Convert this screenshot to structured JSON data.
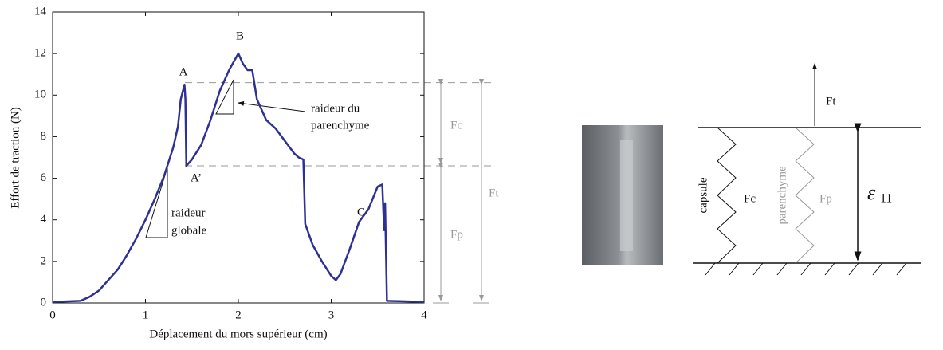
{
  "chart_data": {
    "type": "line",
    "xlabel": "Déplacement du mors supérieur (cm)",
    "ylabel": "Effort de traction (N)",
    "xlim": [
      0,
      4
    ],
    "xticks": [
      0,
      1,
      2,
      3,
      4
    ],
    "ylim": [
      0,
      14
    ],
    "yticks": [
      0,
      2,
      4,
      6,
      8,
      10,
      12,
      14
    ],
    "series": [
      {
        "color": "#2e3192",
        "x": [
          0,
          0.3,
          0.4,
          0.5,
          0.6,
          0.7,
          0.8,
          0.9,
          1.0,
          1.1,
          1.2,
          1.3,
          1.35,
          1.38,
          1.42,
          1.43,
          1.44,
          1.5,
          1.6,
          1.7,
          1.8,
          1.9,
          2.0,
          2.05,
          2.1,
          2.15,
          2.2,
          2.3,
          2.4,
          2.5,
          2.6,
          2.65,
          2.7,
          2.72,
          2.8,
          2.9,
          3.0,
          3.05,
          3.1,
          3.2,
          3.3,
          3.4,
          3.5,
          3.55,
          3.57,
          3.58,
          3.6,
          4.0
        ],
        "values": [
          0.05,
          0.1,
          0.3,
          0.6,
          1.1,
          1.6,
          2.3,
          3.1,
          4.0,
          5.0,
          6.1,
          7.5,
          8.5,
          9.8,
          10.5,
          9.8,
          6.6,
          6.9,
          7.6,
          8.8,
          10.2,
          11.2,
          12.0,
          11.5,
          11.2,
          11.2,
          9.8,
          8.8,
          8.4,
          7.8,
          7.2,
          7.0,
          6.9,
          3.8,
          2.8,
          2.0,
          1.3,
          1.1,
          1.4,
          2.6,
          3.9,
          4.5,
          5.6,
          5.7,
          3.5,
          4.8,
          0.1,
          0.05
        ]
      }
    ],
    "annotations": [
      "A",
      "A’",
      "B",
      "C",
      "raideur",
      "globale",
      "raideur du",
      "parenchyme",
      "Fc",
      "Fp",
      "Ft"
    ]
  },
  "diagram": {
    "ft": "Ft",
    "fc": "Fc",
    "fp": "Fp",
    "capsule": "capsule",
    "parenchyme": "parenchyme",
    "strain_symbol": "ε",
    "strain_index": "11"
  }
}
